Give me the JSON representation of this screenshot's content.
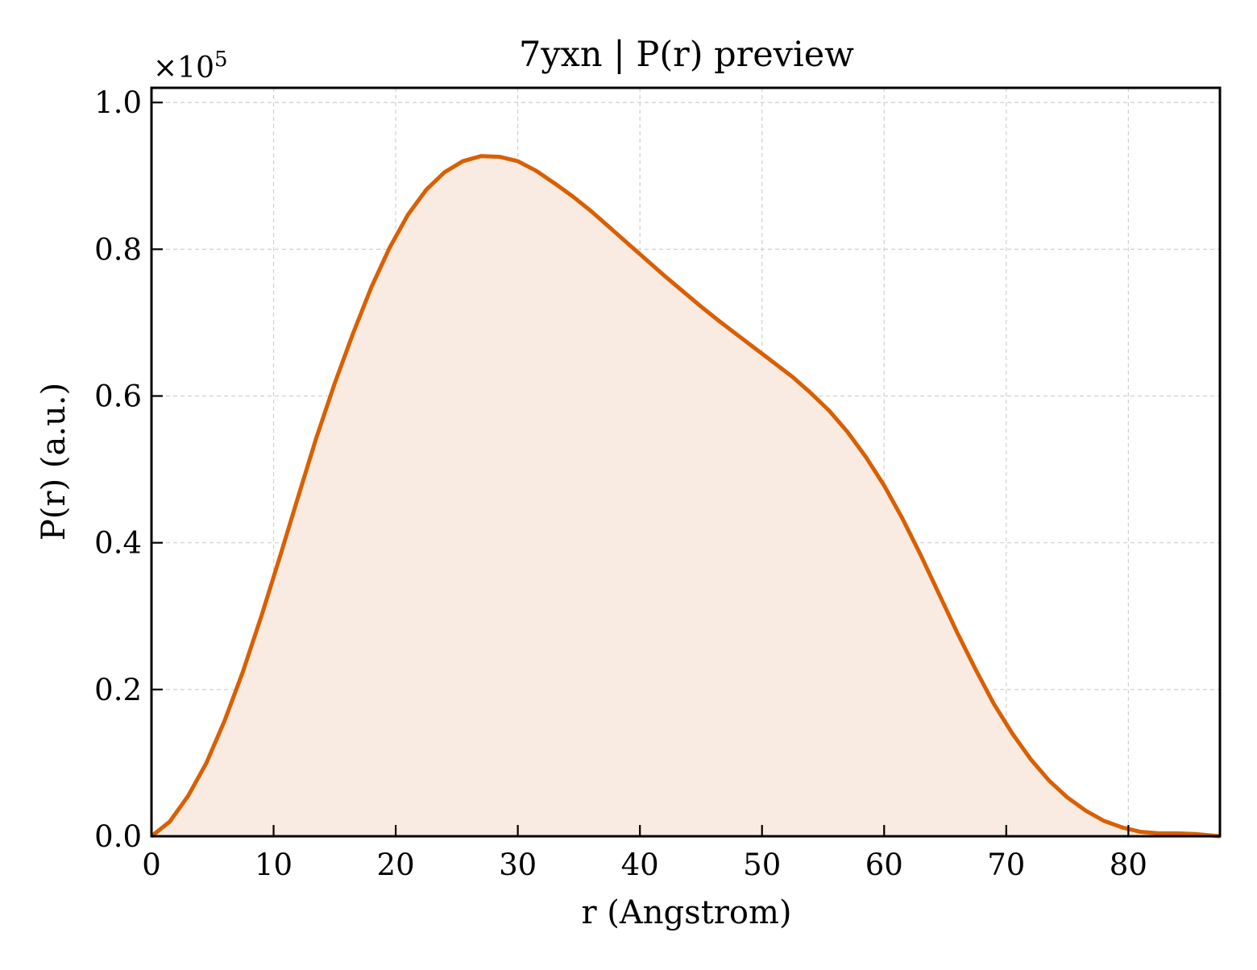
{
  "chart_data": {
    "type": "area",
    "title": "7yxn | P(r) preview",
    "xlabel": "r (Angstrom)",
    "ylabel": "P(r) (a.u.)",
    "y_offset_label_base": "×10",
    "y_offset_label_exp": "5",
    "xlim": [
      0,
      87.5
    ],
    "ylim": [
      0,
      1.02
    ],
    "x_ticks": [
      0,
      10,
      20,
      30,
      40,
      50,
      60,
      70,
      80
    ],
    "x_tick_labels": [
      "0",
      "10",
      "20",
      "30",
      "40",
      "50",
      "60",
      "70",
      "80"
    ],
    "y_ticks": [
      0,
      0.2,
      0.4,
      0.6,
      0.8,
      1.0
    ],
    "y_tick_labels": [
      "0.0",
      "0.2",
      "0.4",
      "0.6",
      "0.8",
      "1.0"
    ],
    "grid": true,
    "line_color": "#d95f02",
    "fill_color": "#f9ebe1",
    "series": [
      {
        "x": [
          0,
          1.5,
          3,
          4.5,
          6,
          7.5,
          9,
          10.5,
          12,
          13.5,
          15,
          16.5,
          18,
          19.5,
          21,
          22.5,
          24,
          25.5,
          27,
          28.5,
          30,
          31.5,
          33,
          34.5,
          36,
          37.5,
          39,
          40.5,
          42,
          43.5,
          45,
          46.5,
          48,
          49.5,
          51,
          52.5,
          54,
          55.5,
          57,
          58.5,
          60,
          61.5,
          63,
          64.5,
          66,
          67.5,
          69,
          70.5,
          72,
          73.5,
          75,
          76.5,
          78,
          79.5,
          81,
          82.5,
          84,
          85.5,
          87.5
        ],
        "y": [
          0.0,
          0.02,
          0.055,
          0.1,
          0.158,
          0.225,
          0.3,
          0.38,
          0.462,
          0.543,
          0.617,
          0.685,
          0.748,
          0.802,
          0.847,
          0.881,
          0.905,
          0.92,
          0.927,
          0.926,
          0.92,
          0.907,
          0.89,
          0.872,
          0.852,
          0.83,
          0.808,
          0.786,
          0.764,
          0.743,
          0.722,
          0.702,
          0.683,
          0.664,
          0.645,
          0.626,
          0.604,
          0.58,
          0.551,
          0.517,
          0.478,
          0.433,
          0.383,
          0.33,
          0.277,
          0.227,
          0.18,
          0.14,
          0.105,
          0.076,
          0.053,
          0.035,
          0.021,
          0.012,
          0.006,
          0.004,
          0.004,
          0.003,
          0.0
        ]
      }
    ]
  }
}
